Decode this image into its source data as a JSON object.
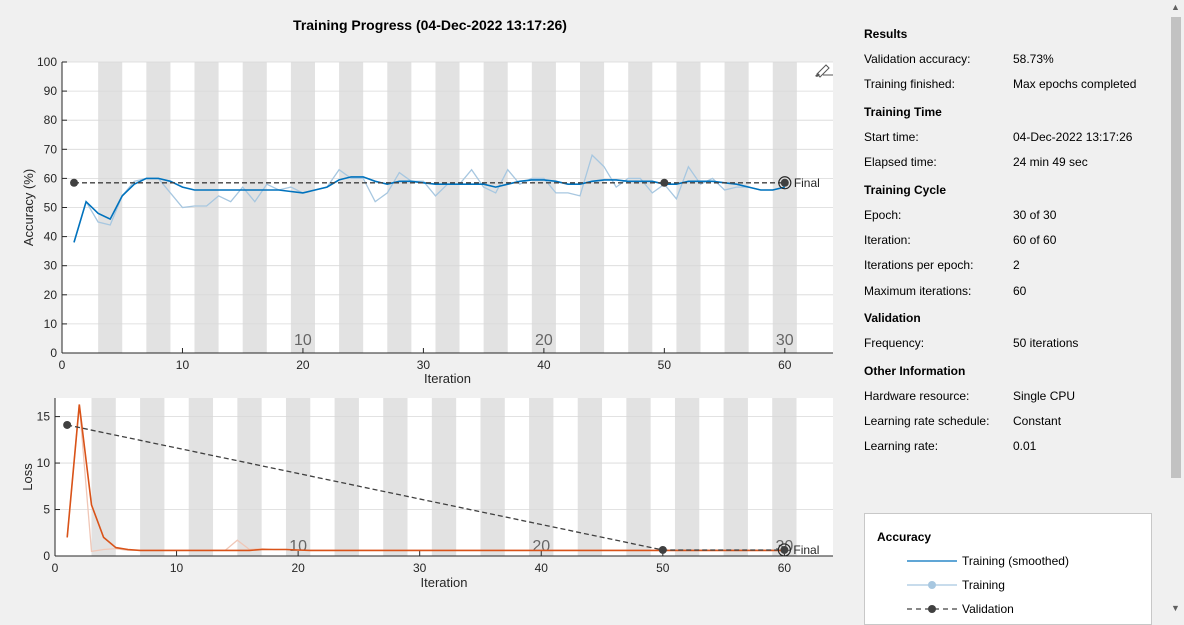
{
  "title": "Training Progress (04-Dec-2022 13:17:26)",
  "colors": {
    "accuracy_smooth": "#0072bd",
    "accuracy_raw": "#a7c7e0",
    "loss_smooth": "#d95319",
    "loss_raw": "#f0c7b7",
    "validation": "#404040",
    "band": "#e2e2e2"
  },
  "chart_data": [
    {
      "type": "line",
      "xlabel": "Iteration",
      "ylabel": "Accuracy (%)",
      "xlim": [
        0,
        64
      ],
      "ylim": [
        0,
        100
      ],
      "xticks": [
        0,
        10,
        20,
        30,
        40,
        50,
        60
      ],
      "yticks": [
        0,
        10,
        20,
        30,
        40,
        50,
        60,
        70,
        80,
        90,
        100
      ],
      "grid": true,
      "epoch_labels": [
        {
          "epoch": "10",
          "x": 20
        },
        {
          "epoch": "20",
          "x": 40
        },
        {
          "epoch": "30",
          "x": 60
        }
      ],
      "final_label": "Final",
      "series": [
        {
          "name": "Training (smoothed)",
          "x": [
            1,
            2,
            3,
            4,
            5,
            6,
            7,
            8,
            9,
            10,
            11,
            12,
            13,
            14,
            15,
            16,
            17,
            18,
            19,
            20,
            21,
            22,
            23,
            24,
            25,
            26,
            27,
            28,
            29,
            30,
            31,
            32,
            33,
            34,
            35,
            36,
            37,
            38,
            39,
            40,
            41,
            42,
            43,
            44,
            45,
            46,
            47,
            48,
            49,
            50,
            51,
            52,
            53,
            54,
            55,
            56,
            57,
            58,
            59,
            60
          ],
          "y": [
            38,
            52,
            48,
            46,
            54,
            58,
            60,
            60,
            59,
            57,
            56,
            56,
            56,
            56,
            56,
            56,
            56,
            56,
            55.5,
            55,
            56,
            57,
            59.5,
            60.5,
            60.5,
            59,
            58,
            59,
            59,
            58.5,
            58,
            58,
            58,
            58,
            58,
            57,
            58,
            59,
            59.5,
            59.5,
            59,
            58,
            58,
            59,
            59.5,
            59.5,
            59,
            59,
            59,
            58,
            58,
            59,
            59,
            59,
            58.5,
            58,
            57,
            56,
            56,
            57
          ]
        },
        {
          "name": "Training",
          "x": [
            1,
            2,
            3,
            4,
            5,
            6,
            7,
            8,
            9,
            10,
            11,
            12,
            13,
            14,
            15,
            16,
            17,
            18,
            19,
            20,
            21,
            22,
            23,
            24,
            25,
            26,
            27,
            28,
            29,
            30,
            31,
            32,
            33,
            34,
            35,
            36,
            37,
            38,
            39,
            40,
            41,
            42,
            43,
            44,
            45,
            46,
            47,
            48,
            49,
            50,
            51,
            52,
            53,
            54,
            55,
            56,
            57,
            58,
            59,
            60
          ],
          "y": [
            38,
            52,
            45,
            44,
            54,
            59,
            60,
            60,
            55,
            50,
            50.5,
            50.5,
            54,
            52,
            57,
            52,
            58,
            56,
            57,
            55,
            56,
            57,
            63,
            60,
            60,
            52,
            55,
            62,
            59,
            59,
            54,
            58,
            58,
            63,
            57,
            55,
            63,
            58,
            60,
            60,
            55,
            55,
            54,
            68,
            64,
            57,
            60,
            60,
            55,
            58,
            53,
            64,
            58,
            60,
            56,
            57,
            57,
            56,
            56,
            57
          ]
        },
        {
          "name": "Validation",
          "x": [
            1,
            50,
            60
          ],
          "y": [
            58.5,
            58.5,
            58.5
          ]
        }
      ]
    },
    {
      "type": "line",
      "xlabel": "Iteration",
      "ylabel": "Loss",
      "xlim": [
        0,
        64
      ],
      "ylim": [
        0,
        17
      ],
      "xticks": [
        0,
        10,
        20,
        30,
        40,
        50,
        60
      ],
      "yticks": [
        0,
        5,
        10,
        15
      ],
      "grid": true,
      "epoch_labels": [
        {
          "epoch": "10",
          "x": 20
        },
        {
          "epoch": "20",
          "x": 40
        },
        {
          "epoch": "30",
          "x": 60
        }
      ],
      "final_label": "Final",
      "series": [
        {
          "name": "Training (smoothed)",
          "x": [
            1,
            2,
            3,
            4,
            5,
            6,
            7,
            8,
            9,
            10,
            11,
            12,
            13,
            14,
            15,
            16,
            17,
            18,
            19,
            20,
            21,
            22,
            23,
            24,
            25,
            26,
            27,
            28,
            29,
            30,
            31,
            32,
            33,
            34,
            35,
            36,
            37,
            38,
            39,
            40,
            41,
            42,
            43,
            44,
            45,
            46,
            47,
            48,
            49,
            50,
            51,
            52,
            53,
            54,
            55,
            56,
            57,
            58,
            59,
            60
          ],
          "y": [
            2,
            16.3,
            5.5,
            2,
            0.9,
            0.7,
            0.6,
            0.6,
            0.6,
            0.6,
            0.6,
            0.6,
            0.6,
            0.6,
            0.6,
            0.6,
            0.7,
            0.7,
            0.7,
            0.65,
            0.6,
            0.6,
            0.6,
            0.6,
            0.6,
            0.6,
            0.6,
            0.6,
            0.6,
            0.6,
            0.6,
            0.6,
            0.6,
            0.6,
            0.6,
            0.6,
            0.6,
            0.6,
            0.6,
            0.6,
            0.6,
            0.6,
            0.6,
            0.6,
            0.6,
            0.6,
            0.6,
            0.6,
            0.6,
            0.6,
            0.6,
            0.6,
            0.6,
            0.6,
            0.6,
            0.6,
            0.6,
            0.6,
            0.6,
            0.6
          ]
        },
        {
          "name": "Training",
          "x": [
            1,
            2,
            3,
            4,
            5,
            6,
            7,
            8,
            9,
            10,
            11,
            12,
            13,
            14,
            15,
            16,
            17,
            18,
            19,
            20,
            21,
            22,
            23,
            24,
            25,
            26,
            27,
            28,
            29,
            30,
            31,
            32,
            33,
            34,
            35,
            36,
            37,
            38,
            39,
            40,
            41,
            42,
            43,
            44,
            45,
            46,
            47,
            48,
            49,
            50,
            51,
            52,
            53,
            54,
            55,
            56,
            57,
            58,
            59,
            60
          ],
          "y": [
            2,
            16.3,
            0.5,
            0.7,
            0.8,
            0.6,
            0.6,
            0.6,
            0.6,
            0.6,
            0.6,
            0.6,
            0.6,
            0.6,
            1.7,
            0.7,
            0.8,
            0.7,
            0.7,
            0.6,
            0.6,
            0.6,
            0.6,
            0.6,
            0.6,
            0.6,
            0.6,
            0.6,
            0.6,
            0.6,
            0.6,
            0.6,
            0.6,
            0.6,
            0.6,
            0.6,
            0.6,
            0.6,
            0.6,
            0.6,
            0.6,
            0.6,
            0.6,
            0.6,
            0.6,
            0.6,
            0.6,
            0.6,
            0.6,
            0.6,
            0.6,
            0.6,
            0.6,
            0.6,
            0.6,
            0.6,
            0.6,
            0.6,
            0.6,
            0.6
          ]
        },
        {
          "name": "Validation",
          "x": [
            1,
            50,
            60
          ],
          "y": [
            14.1,
            0.65,
            0.65
          ]
        }
      ]
    }
  ],
  "results_panel": {
    "sections": [
      {
        "title": "Results",
        "rows": [
          {
            "label": "Validation accuracy:",
            "value": "58.73%"
          },
          {
            "label": "Training finished:",
            "value": "Max epochs completed"
          }
        ]
      },
      {
        "title": "Training Time",
        "rows": [
          {
            "label": "Start time:",
            "value": "04-Dec-2022 13:17:26"
          },
          {
            "label": "Elapsed time:",
            "value": "24 min 49 sec"
          }
        ]
      },
      {
        "title": "Training Cycle",
        "rows": [
          {
            "label": "Epoch:",
            "value": "30 of 30"
          },
          {
            "label": "Iteration:",
            "value": "60 of 60"
          },
          {
            "label": "Iterations per epoch:",
            "value": "2"
          },
          {
            "label": "Maximum iterations:",
            "value": "60"
          }
        ]
      },
      {
        "title": "Validation",
        "rows": [
          {
            "label": "Frequency:",
            "value": "50 iterations"
          }
        ]
      },
      {
        "title": "Other Information",
        "rows": [
          {
            "label": "Hardware resource:",
            "value": "Single CPU"
          },
          {
            "label": "Learning rate schedule:",
            "value": "Constant"
          },
          {
            "label": "Learning rate:",
            "value": "0.01"
          }
        ]
      }
    ]
  },
  "legend": {
    "title": "Accuracy",
    "items": [
      {
        "label": "Training (smoothed)"
      },
      {
        "label": "Training"
      },
      {
        "label": "Validation"
      }
    ]
  },
  "icons": {
    "export": "brush-icon",
    "scroll_up": "arrow-up-icon",
    "scroll_down": "arrow-down-icon"
  }
}
